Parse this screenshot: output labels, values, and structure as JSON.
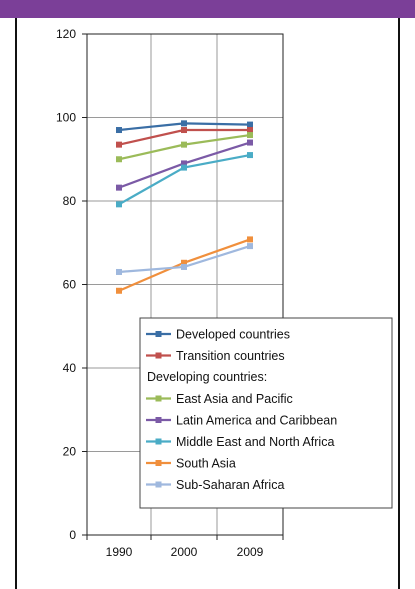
{
  "chart_data": {
    "type": "line",
    "categories": [
      "1990",
      "2000",
      "2009"
    ],
    "ylim": [
      0,
      120
    ],
    "yticks": [
      0,
      20,
      40,
      60,
      80,
      100,
      120
    ],
    "grid": true,
    "legend_placement": "bottom-right",
    "legend_subheading": "Developing countries:",
    "series": [
      {
        "name": "Developed countries",
        "color": "#3a6ea5",
        "values": [
          97,
          98.6,
          98.3
        ]
      },
      {
        "name": "Transition countries",
        "color": "#c0504d",
        "values": [
          93.5,
          97,
          97
        ]
      },
      {
        "name": "East Asia and Pacific",
        "color": "#9bbb59",
        "values": [
          90,
          93.5,
          95.8
        ]
      },
      {
        "name": "Latin America and Caribbean",
        "color": "#7b5aa6",
        "values": [
          83.2,
          89,
          94
        ]
      },
      {
        "name": "Middle East and North Africa",
        "color": "#4aacc6",
        "values": [
          79.2,
          88,
          91
        ]
      },
      {
        "name": "South Asia",
        "color": "#f08f3c",
        "values": [
          58.5,
          65.2,
          70.8
        ]
      },
      {
        "name": "Sub-Saharan Africa",
        "color": "#9fb8de",
        "values": [
          63,
          64.2,
          69.2
        ]
      }
    ]
  }
}
